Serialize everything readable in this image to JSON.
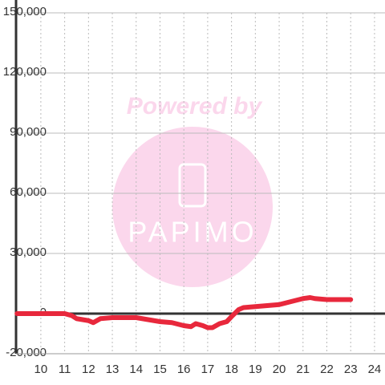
{
  "chart_data": {
    "type": "line",
    "x": [
      9,
      9.5,
      10,
      10.5,
      11,
      11.3,
      11.5,
      12,
      12.2,
      12.5,
      13,
      13.5,
      14,
      14.5,
      15,
      15.5,
      16,
      16.3,
      16.5,
      16.8,
      17,
      17.2,
      17.5,
      17.8,
      18,
      18.3,
      18.5,
      19,
      19.5,
      20,
      20.5,
      21,
      21.3,
      21.5,
      22,
      22.5,
      23
    ],
    "series": [
      {
        "color": "#e8283c",
        "values": [
          0,
          0,
          0,
          0,
          0,
          -1000,
          -2500,
          -3500,
          -4500,
          -2500,
          -2000,
          -2000,
          -2000,
          -3000,
          -4000,
          -4500,
          -6000,
          -6500,
          -5000,
          -6000,
          -7000,
          -7000,
          -5000,
          -4000,
          -1500,
          2000,
          3000,
          3500,
          4000,
          4500,
          6000,
          7500,
          8000,
          7500,
          7000,
          7000,
          7000
        ]
      }
    ],
    "xlim": [
      8.96,
      24.44
    ],
    "xticks": [
      10,
      11,
      12,
      13,
      14,
      15,
      16,
      17,
      18,
      19,
      20,
      21,
      22,
      23,
      24
    ],
    "ylim": [
      -20000,
      150000
    ],
    "yticks": [
      {
        "value": -20000,
        "label": "-20,000"
      },
      0,
      {
        "value": 30000,
        "label": "30,000"
      },
      {
        "value": 60000,
        "label": "60,000"
      },
      {
        "value": 90000,
        "label": "90,000"
      },
      {
        "value": 120000,
        "label": "120,000"
      },
      {
        "value": 150000,
        "label": "150,000"
      }
    ],
    "grid": true,
    "watermark": {
      "text": "Powered by",
      "logo": "PAPIMO"
    }
  }
}
